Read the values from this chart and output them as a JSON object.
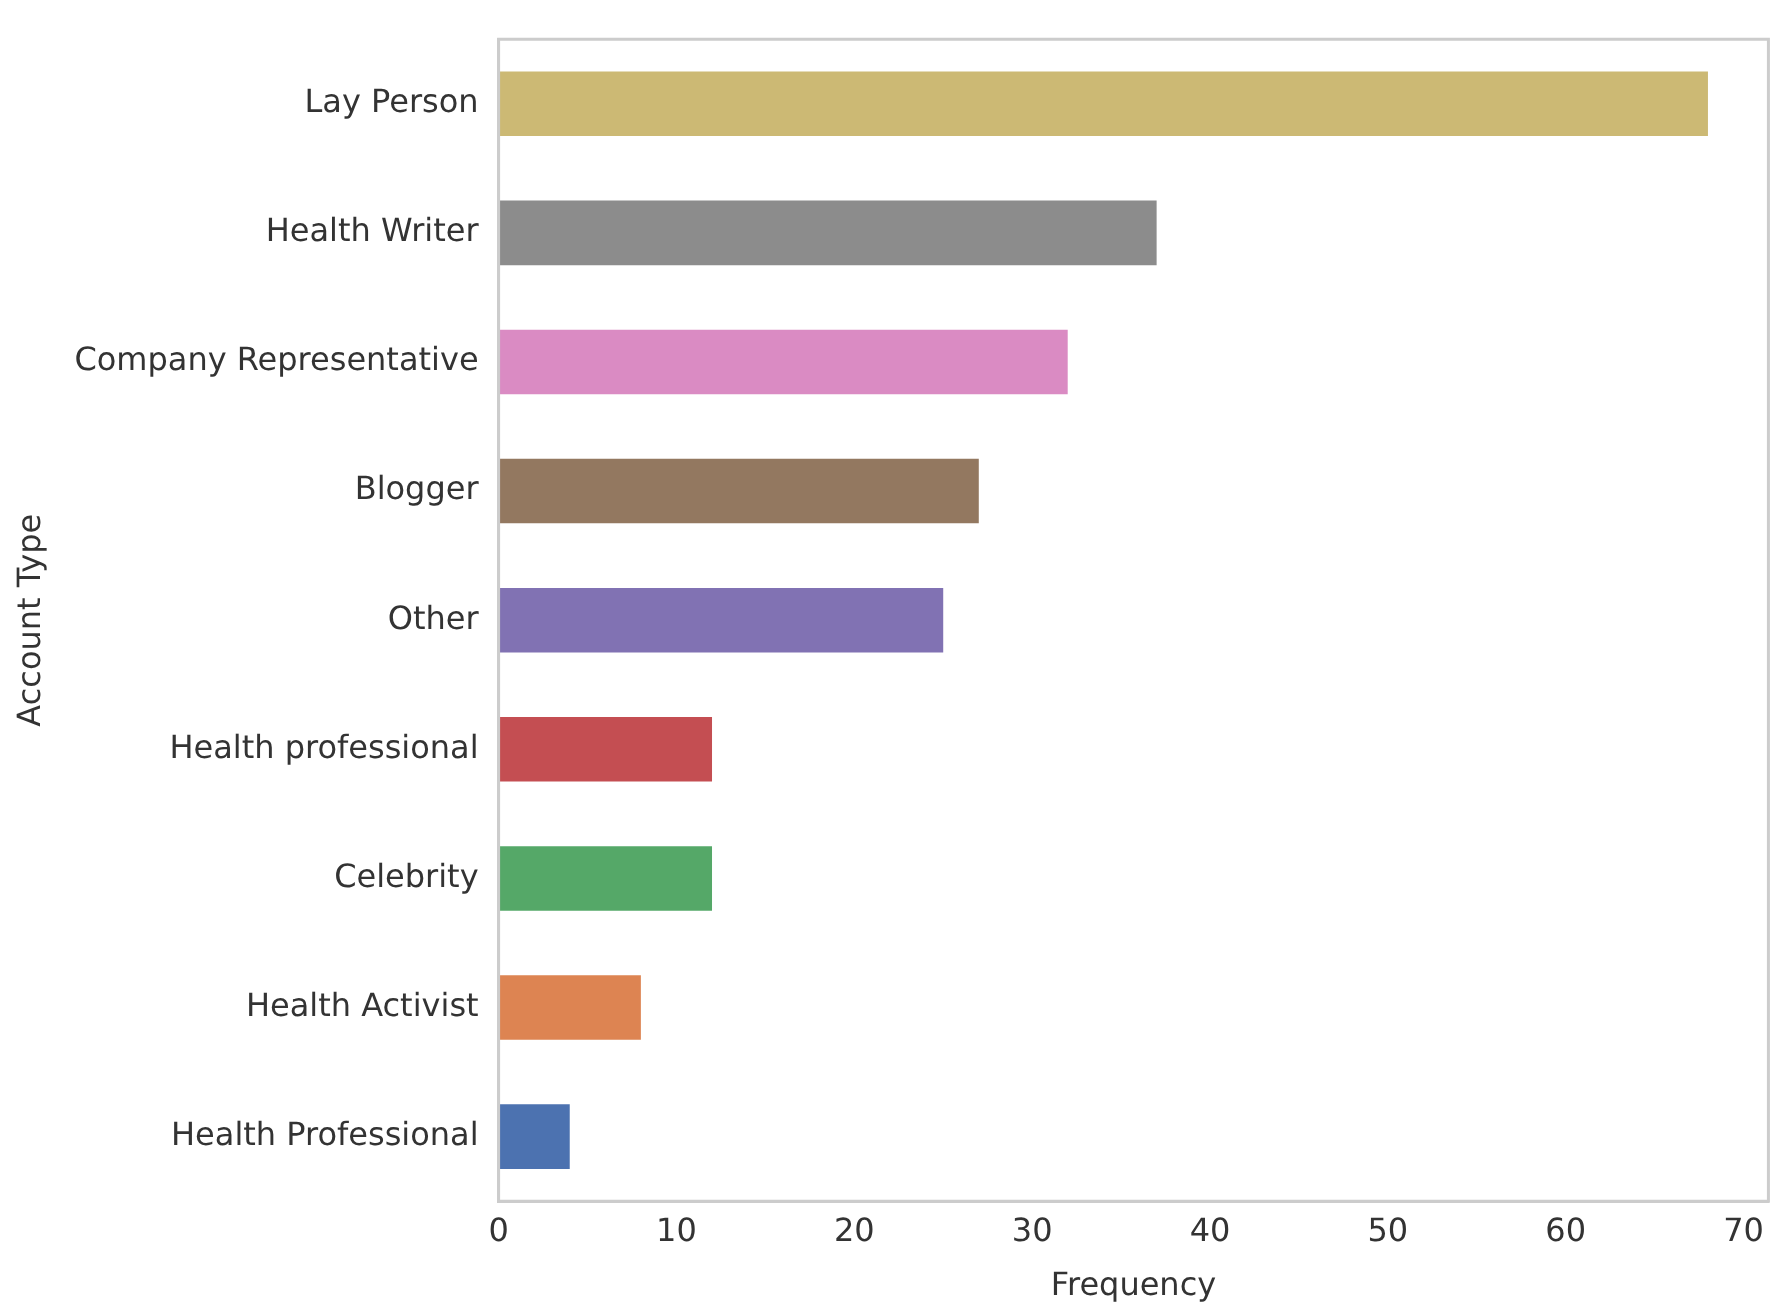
{
  "chart_data": {
    "type": "bar",
    "orientation": "horizontal",
    "xlabel": "Frequency",
    "ylabel": "Account Type",
    "categories": [
      "Lay Person",
      "Health Writer",
      "Company Representative",
      "Blogger",
      "Other",
      "Health professional",
      "Celebrity",
      "Health Activist",
      "Health Professional"
    ],
    "values": [
      68,
      37,
      32,
      27,
      25,
      12,
      12,
      8,
      4
    ],
    "colors": [
      "#ccb974",
      "#8c8c8c",
      "#da8bc3",
      "#937860",
      "#8172b3",
      "#c44e52",
      "#55a868",
      "#dd8452",
      "#4c72b0"
    ],
    "xlim": [
      0,
      71.4
    ],
    "xticks": [
      0,
      10,
      20,
      30,
      40,
      50,
      60,
      70
    ],
    "grid": false,
    "legend": false
  }
}
